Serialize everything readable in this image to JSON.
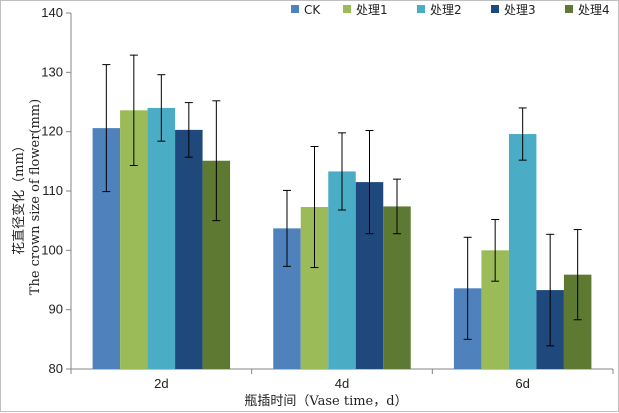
{
  "chart_data": {
    "type": "bar",
    "categories": [
      "2d",
      "4d",
      "6d"
    ],
    "series": [
      {
        "name": "CK",
        "color": "#4F81BD",
        "values": [
          120.6,
          103.7,
          93.6
        ],
        "errors": [
          10.7,
          6.4,
          8.6
        ]
      },
      {
        "name": "处理1",
        "color": "#9BBB59",
        "values": [
          123.6,
          107.3,
          100.0
        ],
        "errors": [
          9.3,
          10.2,
          5.2
        ]
      },
      {
        "name": "处理2",
        "color": "#4BACC6",
        "values": [
          124.0,
          113.3,
          119.6
        ],
        "errors": [
          5.6,
          6.5,
          4.4
        ]
      },
      {
        "name": "处理3",
        "color": "#1F497D",
        "values": [
          120.3,
          111.5,
          93.3
        ],
        "errors": [
          4.6,
          8.7,
          9.4
        ]
      },
      {
        "name": "处理4",
        "color": "#5E7A32",
        "values": [
          115.1,
          107.4,
          95.9
        ],
        "errors": [
          10.1,
          4.6,
          7.6
        ]
      }
    ],
    "yticks": [
      80,
      90,
      100,
      110,
      120,
      130,
      140
    ],
    "ylim": [
      80,
      140
    ],
    "ylabel_cn": "花直径变化（mm）",
    "ylabel_en": "The crown size of flower(mm)",
    "xlabel": "瓶插时间（Vase time，d）",
    "legend_position": "top-right",
    "grid": false
  }
}
